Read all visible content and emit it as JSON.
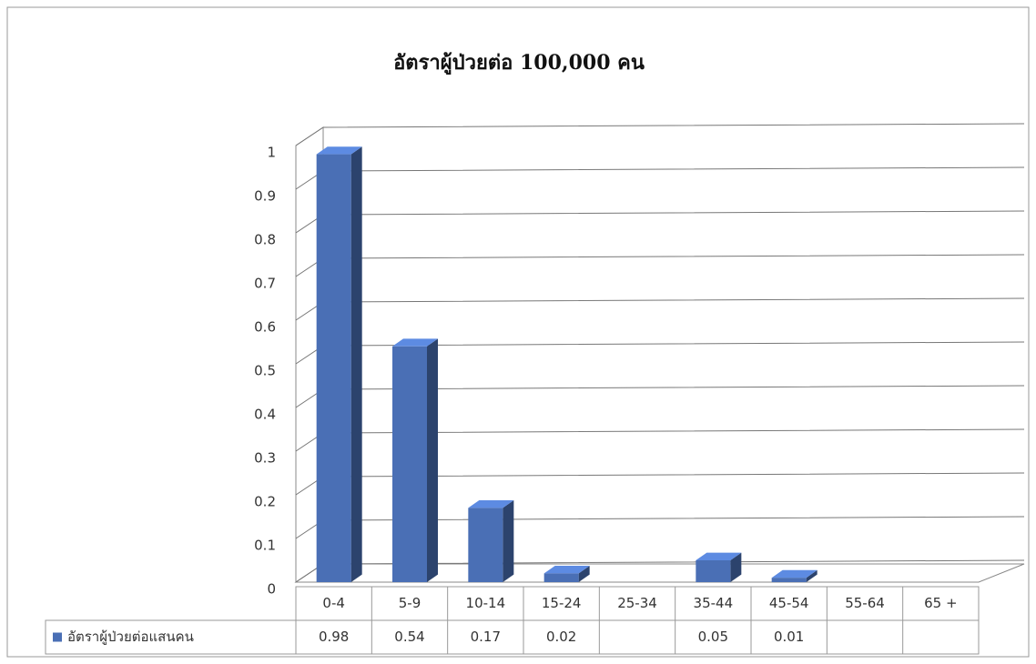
{
  "chart_data": {
    "type": "bar3d",
    "title": "อัตราผู้ป่วยต่อ 100,000 คน",
    "categories": [
      "0-4",
      "5-9",
      "10-14",
      "15-24",
      "25-34",
      "35-44",
      "45-54",
      "55-64",
      "65 +"
    ],
    "series": [
      {
        "name": "อัตราผู้ป่วยต่อแสนคน",
        "color": "#4a6fb5",
        "values": [
          0.98,
          0.54,
          0.17,
          0.02,
          null,
          0.05,
          0.01,
          null,
          null
        ]
      }
    ],
    "ylim": [
      0,
      1
    ],
    "yticks": [
      0,
      0.1,
      0.2,
      0.3,
      0.4,
      0.5,
      0.6,
      0.7,
      0.8,
      0.9,
      1
    ],
    "grid": true,
    "data_table": true
  }
}
